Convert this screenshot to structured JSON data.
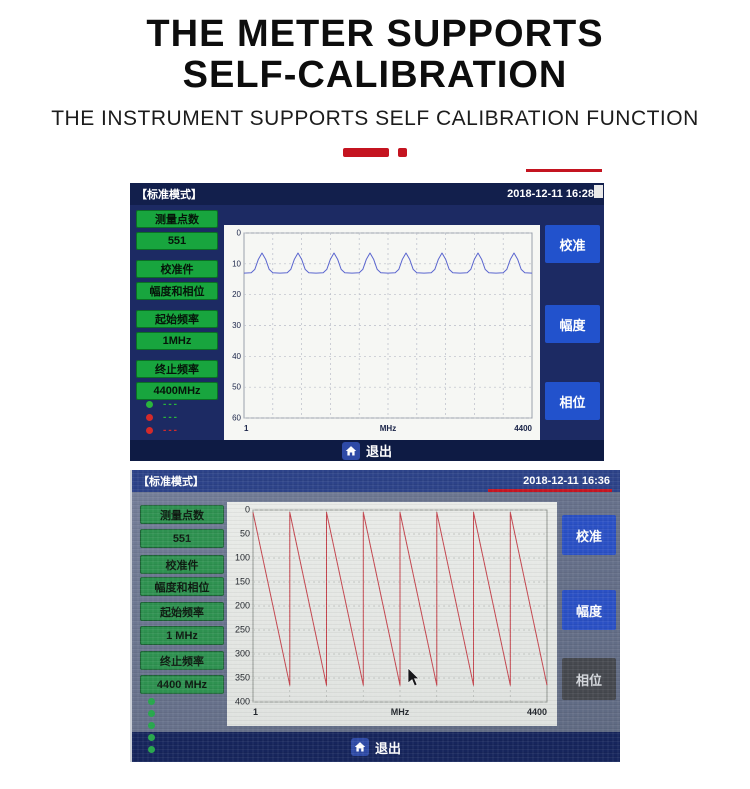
{
  "page": {
    "title_line1": "THE METER SUPPORTS",
    "title_line2": "SELF-CALIBRATION",
    "subtitle": "THE INSTRUMENT SUPPORTS SELF CALIBRATION FUNCTION"
  },
  "colors": {
    "accent_red": "#c41420",
    "screen1_background": "#1c2a63",
    "screen1_green_button": "#18a53e",
    "screen1_blue_button": "#2252cc",
    "trace_blue": "#5b66cf",
    "screen2_background": "#67718b",
    "screen2_green_button": "#2e9150",
    "screen2_blue_button": "#2a50c4",
    "screen2_dark_button": "#45484e",
    "trace_red": "#c4454e"
  },
  "screen1": {
    "mode_label": "【标准模式】",
    "timestamp": "2018-12-11 16:28",
    "left_buttons": [
      "测量点数",
      "551",
      "校准件",
      "幅度和相位",
      "起始频率",
      "1MHz",
      "终止频率",
      "4400MHz"
    ],
    "indicators": [
      {
        "dot": "#2ab53c",
        "dash_color": "#2ab53c",
        "dash_text": "---"
      },
      {
        "dot": "#d42a2a",
        "dash_color": "#2ab53c",
        "dash_text": "---"
      },
      {
        "dot": "#d42a2a",
        "dash_color": "#d42a2a",
        "dash_text": "---"
      },
      {
        "dot": "#d42a2a",
        "dash_color": "#d42a2a",
        "dash_text": "---"
      }
    ],
    "right_buttons": [
      "校准",
      "幅度",
      "相位"
    ],
    "exit_label": "退出"
  },
  "screen2": {
    "mode_label": "【标准模式】",
    "timestamp": "2018-12-11 16:36",
    "left_buttons": [
      "测量点数",
      "551",
      "校准件",
      "幅度和相位",
      "起始频率",
      "1 MHz",
      "终止频率",
      "4400 MHz"
    ],
    "dots": [
      "#2aa84e",
      "#2aa84e",
      "#2aa84e",
      "#2aa84e",
      "#2aa84e"
    ],
    "right_buttons": [
      "校准",
      "幅度",
      "相位"
    ],
    "exit_label": "退出"
  },
  "chart_data": [
    {
      "type": "line",
      "title": "",
      "xlabel": "MHz",
      "ylabel": "",
      "x_tick_labels": [
        "1",
        "4400"
      ],
      "x_range": [
        1,
        4400
      ],
      "y_ticks": [
        0,
        10,
        20,
        30,
        40,
        50,
        60
      ],
      "y_axis_direction": "down",
      "ylim": [
        0,
        60
      ],
      "grid": "dotted",
      "x_divisions": 10,
      "grid_color": "#b9bdc8",
      "frame_color": "#9aa0ac",
      "label_color": "#1a2448",
      "tick_font": 8,
      "legend": "none",
      "series": [
        {
          "name": "calibration-amplitude-trace",
          "color": "#5b66cf",
          "x_frac": [
            0,
            0.025,
            0.0375,
            0.05,
            0.0625,
            0.075,
            0.0875,
            0.1,
            0.125,
            0.15,
            0.1625,
            0.175,
            0.1875,
            0.2,
            0.2125,
            0.225,
            0.25,
            0.275,
            0.2875,
            0.3,
            0.3125,
            0.325,
            0.3375,
            0.35,
            0.375,
            0.4,
            0.4125,
            0.425,
            0.4375,
            0.45,
            0.4625,
            0.475,
            0.5,
            0.525,
            0.5375,
            0.55,
            0.5625,
            0.575,
            0.5875,
            0.6,
            0.625,
            0.65,
            0.6625,
            0.675,
            0.6875,
            0.7,
            0.7125,
            0.725,
            0.75,
            0.775,
            0.7875,
            0.8,
            0.8125,
            0.825,
            0.8375,
            0.85,
            0.875,
            0.9,
            0.9125,
            0.925,
            0.9375,
            0.95,
            0.9625,
            0.975,
            1
          ],
          "y": [
            13,
            12.9,
            11.8,
            8.5,
            6.5,
            8.5,
            11.8,
            12.9,
            13,
            12.9,
            11.8,
            8.5,
            6.5,
            8.5,
            11.8,
            12.9,
            13,
            12.9,
            11.8,
            8.5,
            6.5,
            8.5,
            11.8,
            12.9,
            13,
            12.9,
            11.8,
            8.5,
            6.5,
            8.5,
            11.8,
            12.9,
            13,
            12.9,
            11.8,
            8.5,
            6.5,
            8.5,
            11.8,
            12.9,
            13,
            12.9,
            11.8,
            8.5,
            6.5,
            8.5,
            11.8,
            12.9,
            13,
            12.9,
            11.8,
            8.5,
            6.5,
            8.5,
            11.8,
            12.9,
            13,
            12.9,
            11.8,
            8.5,
            6.5,
            8.5,
            11.8,
            12.9,
            13
          ]
        }
      ]
    },
    {
      "type": "line",
      "title": "",
      "xlabel": "MHz",
      "ylabel": "",
      "x_tick_labels": [
        "1",
        "4400"
      ],
      "x_range": [
        1,
        4400
      ],
      "y_ticks": [
        0,
        50,
        100,
        150,
        200,
        250,
        300,
        350,
        400
      ],
      "y_axis_direction": "down",
      "ylim": [
        0,
        400
      ],
      "grid": "dotted",
      "x_divisions": 8,
      "grid_color": "#b2b6b2",
      "frame_color": "#8f948f",
      "label_color": "#20242a",
      "tick_font": 9,
      "legend": "none",
      "series": [
        {
          "name": "calibration-phase-trace",
          "color": "#c4454e",
          "x_frac": [
            0,
            0.125,
            0.125,
            0.25,
            0.25,
            0.375,
            0.375,
            0.5,
            0.5,
            0.625,
            0.625,
            0.75,
            0.75,
            0.875,
            0.875,
            1
          ],
          "y": [
            5,
            365,
            5,
            365,
            5,
            365,
            5,
            365,
            5,
            365,
            5,
            365,
            5,
            365,
            5,
            365
          ]
        }
      ]
    }
  ]
}
